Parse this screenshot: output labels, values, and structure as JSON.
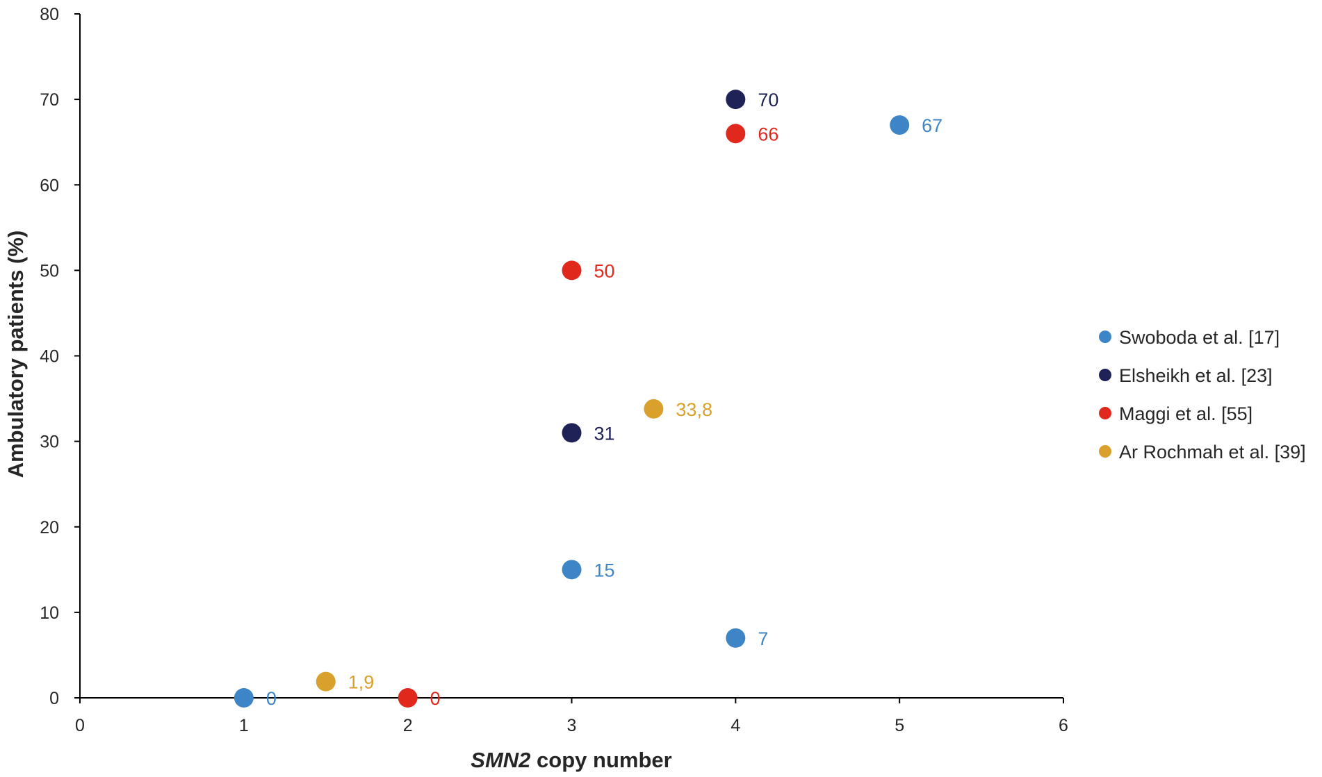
{
  "chart_data": {
    "type": "scatter",
    "title": "",
    "xlabel_italic": "SMN2",
    "xlabel_rest": " copy number",
    "ylabel": "Ambulatory patients (%)",
    "xlim": [
      0,
      6
    ],
    "ylim": [
      0,
      80
    ],
    "x_ticks": [
      0,
      1,
      2,
      3,
      4,
      5,
      6
    ],
    "y_ticks": [
      0,
      10,
      20,
      30,
      40,
      50,
      60,
      70,
      80
    ],
    "grid": false,
    "legend_position": "right",
    "series": [
      {
        "name": "Swoboda et al. [17]",
        "color": "#3d85c6",
        "points": [
          {
            "x": 1,
            "y": 0,
            "label": "0"
          },
          {
            "x": 3,
            "y": 15,
            "label": "15"
          },
          {
            "x": 4,
            "y": 7,
            "label": "7"
          },
          {
            "x": 5,
            "y": 67,
            "label": "67"
          }
        ]
      },
      {
        "name": "Elsheikh et al. [23]",
        "color": "#1f2257",
        "points": [
          {
            "x": 3,
            "y": 31,
            "label": "31"
          },
          {
            "x": 4,
            "y": 70,
            "label": "70"
          }
        ]
      },
      {
        "name": "Maggi et al. [55]",
        "color": "#e0281c",
        "points": [
          {
            "x": 2,
            "y": 0,
            "label": "0"
          },
          {
            "x": 3,
            "y": 50,
            "label": "50"
          },
          {
            "x": 4,
            "y": 66,
            "label": "66"
          }
        ]
      },
      {
        "name": "Ar Rochmah et al. [39]",
        "color": "#d9a02b",
        "points": [
          {
            "x": 1.5,
            "y": 1.9,
            "label": "1,9"
          },
          {
            "x": 3.5,
            "y": 33.8,
            "label": "33,8"
          }
        ]
      }
    ]
  }
}
